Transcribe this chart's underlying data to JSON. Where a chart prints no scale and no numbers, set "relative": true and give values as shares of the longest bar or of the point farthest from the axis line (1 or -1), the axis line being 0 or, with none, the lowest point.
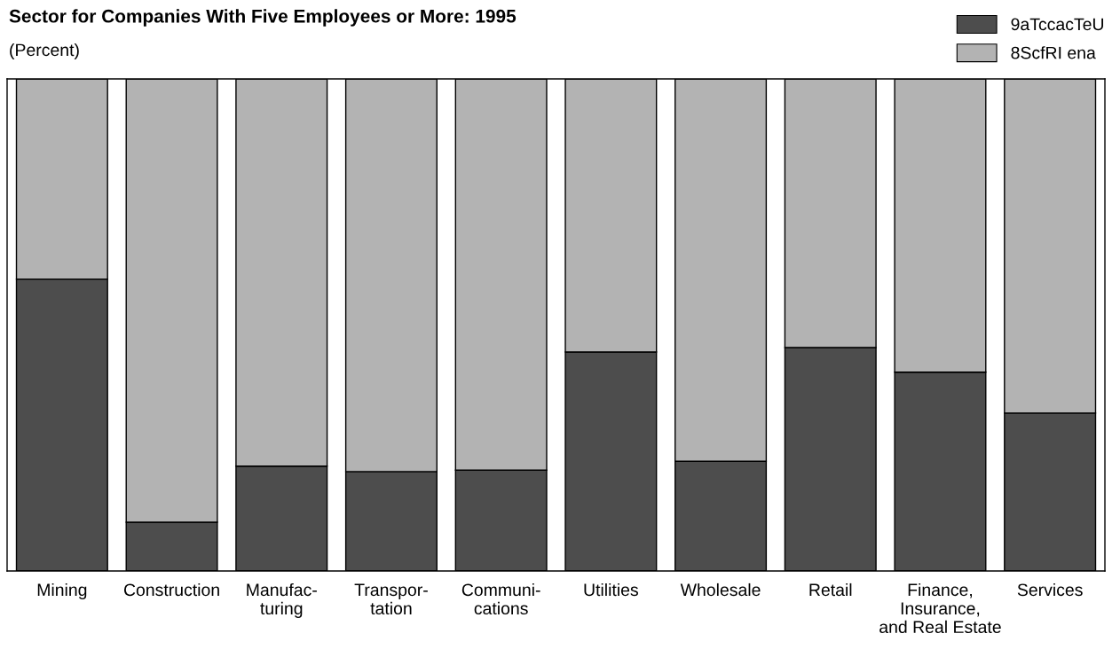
{
  "chart_data": {
    "type": "bar",
    "title": "Sector for Companies With Five Employees or More: 1995",
    "subtitle": "(Percent)",
    "categories": [
      "Mining",
      "Construction",
      "Manufac-\nturing",
      "Transpor-\ntation",
      "Communi-\ncations",
      "Utilities",
      "Wholesale",
      "Retail",
      "Finance,\nInsurance,\nand Real Estate",
      "Services"
    ],
    "stacked": true,
    "relative": true,
    "legend": "top right",
    "series": [
      {
        "name": "9aTccacTeU",
        "color": "#4d4d4d",
        "values": [
          0.593,
          0.099,
          0.213,
          0.202,
          0.205,
          0.445,
          0.223,
          0.454,
          0.404,
          0.321
        ]
      },
      {
        "name": "8ScfRI ena",
        "color": "#b3b3b3",
        "values": [
          0.407,
          0.901,
          0.787,
          0.798,
          0.795,
          0.555,
          0.777,
          0.546,
          0.596,
          0.679
        ]
      }
    ]
  }
}
